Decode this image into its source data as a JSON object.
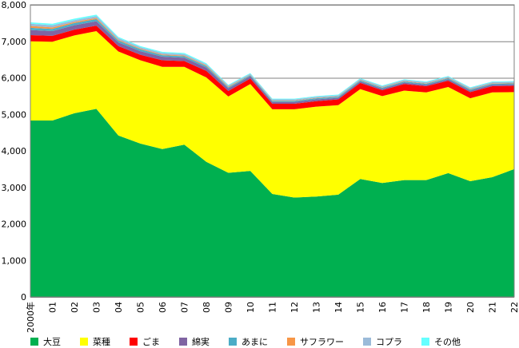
{
  "chart_data": {
    "type": "area",
    "stacked": true,
    "categories": [
      "2000年",
      "01",
      "02",
      "03",
      "04",
      "05",
      "06",
      "07",
      "08",
      "09",
      "10",
      "11",
      "12",
      "13",
      "14",
      "15",
      "16",
      "17",
      "18",
      "19",
      "20",
      "21",
      "22"
    ],
    "ylim": [
      0,
      8000
    ],
    "yticks": [
      0,
      1000,
      2000,
      3000,
      4000,
      5000,
      6000,
      7000,
      8000
    ],
    "ytick_labels": [
      "0",
      "1,000",
      "2,000",
      "3,000",
      "4,000",
      "5,000",
      "6,000",
      "7,000",
      "8,000"
    ],
    "grid": "major-y-lines-above-6000",
    "legend_position": "bottom",
    "series": [
      {
        "name": "大豆",
        "color": "#00b050",
        "values": [
          4830,
          4830,
          5030,
          5150,
          4420,
          4200,
          4050,
          4170,
          3700,
          3400,
          3450,
          2820,
          2720,
          2750,
          2800,
          3230,
          3120,
          3200,
          3200,
          3390,
          3170,
          3280,
          3500
        ]
      },
      {
        "name": "菜種",
        "color": "#ffff00",
        "values": [
          2170,
          2160,
          2130,
          2130,
          2300,
          2280,
          2250,
          2130,
          2310,
          2090,
          2380,
          2320,
          2420,
          2460,
          2450,
          2460,
          2380,
          2450,
          2400,
          2360,
          2270,
          2320,
          2110
        ]
      },
      {
        "name": "ごま",
        "color": "#ff0000",
        "values": [
          170,
          160,
          160,
          150,
          150,
          150,
          180,
          160,
          180,
          150,
          150,
          150,
          150,
          150,
          160,
          170,
          160,
          180,
          170,
          170,
          170,
          170,
          170
        ]
      },
      {
        "name": "綿実",
        "color": "#8064a2",
        "values": [
          140,
          130,
          120,
          120,
          100,
          100,
          100,
          90,
          90,
          70,
          60,
          50,
          50,
          50,
          40,
          40,
          40,
          40,
          40,
          40,
          40,
          40,
          40
        ]
      },
      {
        "name": "あまに",
        "color": "#4bacc6",
        "values": [
          60,
          60,
          60,
          60,
          50,
          50,
          40,
          40,
          40,
          30,
          30,
          30,
          30,
          30,
          30,
          30,
          30,
          30,
          30,
          30,
          30,
          30,
          30
        ]
      },
      {
        "name": "サフラワー",
        "color": "#f79646",
        "values": [
          50,
          40,
          30,
          30,
          20,
          20,
          20,
          20,
          20,
          20,
          10,
          10,
          10,
          10,
          10,
          10,
          10,
          10,
          10,
          10,
          10,
          10,
          10
        ]
      },
      {
        "name": "コプラ",
        "color": "#9bbbd9",
        "values": [
          60,
          60,
          50,
          50,
          50,
          40,
          40,
          40,
          30,
          30,
          30,
          30,
          30,
          30,
          30,
          30,
          30,
          30,
          30,
          30,
          30,
          30,
          30
        ]
      },
      {
        "name": "その他",
        "color": "#66ffff",
        "values": [
          40,
          40,
          40,
          40,
          30,
          30,
          30,
          30,
          30,
          20,
          20,
          20,
          20,
          20,
          20,
          20,
          20,
          20,
          20,
          20,
          20,
          20,
          20
        ]
      }
    ]
  }
}
